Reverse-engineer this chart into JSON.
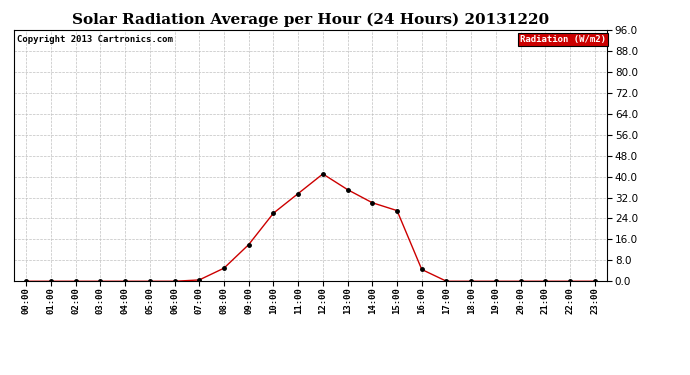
{
  "title": "Solar Radiation Average per Hour (24 Hours) 20131220",
  "copyright_text": "Copyright 2013 Cartronics.com",
  "legend_label": "Radiation (W/m2)",
  "hours": [
    "00:00",
    "01:00",
    "02:00",
    "03:00",
    "04:00",
    "05:00",
    "06:00",
    "07:00",
    "08:00",
    "09:00",
    "10:00",
    "11:00",
    "12:00",
    "13:00",
    "14:00",
    "15:00",
    "16:00",
    "17:00",
    "18:00",
    "19:00",
    "20:00",
    "21:00",
    "22:00",
    "23:00"
  ],
  "values": [
    0.0,
    0.0,
    0.0,
    0.0,
    0.0,
    0.0,
    0.0,
    0.5,
    5.0,
    14.0,
    26.0,
    33.5,
    41.0,
    35.0,
    30.0,
    27.0,
    4.5,
    0.0,
    0.0,
    0.0,
    0.0,
    0.0,
    0.0,
    0.0
  ],
  "ylim": [
    0.0,
    96.0
  ],
  "yticks": [
    0.0,
    8.0,
    16.0,
    24.0,
    32.0,
    40.0,
    48.0,
    56.0,
    64.0,
    72.0,
    80.0,
    88.0,
    96.0
  ],
  "line_color": "#cc0000",
  "marker_color": "#000000",
  "grid_color": "#c0c0c0",
  "background_color": "#ffffff",
  "legend_bg": "#cc0000",
  "legend_text_color": "#ffffff",
  "title_fontsize": 11,
  "copyright_fontsize": 6.5,
  "tick_fontsize": 6.5,
  "ytick_fontsize": 7.5
}
